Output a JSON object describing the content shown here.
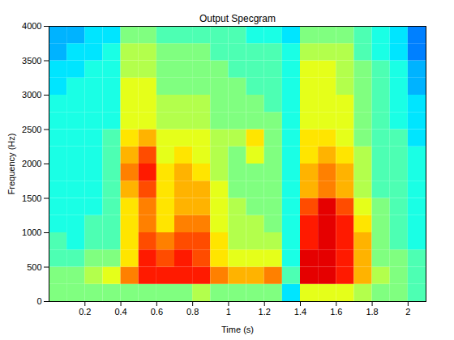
{
  "chart_data": {
    "type": "heatmap",
    "title": "Output Specgram",
    "x_label": "Time (s)",
    "y_label": "Frequency (Hz)",
    "color": "jet",
    "xlim": [
      0,
      2.1
    ],
    "ylim": [
      0,
      4000
    ],
    "xticks": [
      0.2,
      0.4,
      0.6,
      0.8,
      1,
      1.2,
      1.4,
      1.6,
      1.8,
      2
    ],
    "yticks": [
      0,
      500,
      1000,
      1500,
      2000,
      2500,
      3000,
      3500,
      4000
    ],
    "zlim": [
      0,
      10
    ],
    "x_edges": [
      0,
      0.1,
      0.2,
      0.3,
      0.4,
      0.5,
      0.6,
      0.7,
      0.8,
      0.9,
      1,
      1.1,
      1.2,
      1.3,
      1.4,
      1.5,
      1.6,
      1.7,
      1.8,
      1.9,
      2,
      2.1
    ],
    "y_edges": [
      0,
      250,
      500,
      750,
      1000,
      1250,
      1500,
      1750,
      2000,
      2250,
      2500,
      2750,
      3000,
      3250,
      3500,
      3750,
      4000
    ],
    "cells": [
      [
        5,
        5,
        4.5,
        4.5,
        4,
        4,
        4,
        4,
        4,
        4,
        4,
        4,
        3.5,
        3.5,
        3,
        3
      ],
      [
        5,
        5,
        4.5,
        4,
        4,
        4,
        4,
        4,
        4,
        4,
        4,
        4,
        4,
        3.5,
        3.5,
        3
      ],
      [
        5,
        5.5,
        5,
        4.5,
        4.5,
        4,
        4,
        4,
        4,
        4,
        4,
        4,
        4,
        4,
        3.5,
        3.5
      ],
      [
        5,
        6,
        5,
        4.5,
        4.5,
        4.5,
        4.5,
        4.5,
        4.5,
        4.5,
        4,
        4,
        4,
        4,
        4,
        3.5
      ],
      [
        5,
        7.5,
        6.5,
        6.5,
        6.5,
        6.5,
        7,
        7.5,
        7,
        6.5,
        6,
        6,
        6,
        5.5,
        5.5,
        5
      ],
      [
        5,
        8.5,
        8.5,
        8,
        7.5,
        7.5,
        8,
        8.5,
        8,
        7,
        6,
        6,
        6,
        5.5,
        5.5,
        5
      ],
      [
        5,
        8.5,
        8,
        7.5,
        6.5,
        6.5,
        6.5,
        6.5,
        6,
        6,
        5.5,
        5.5,
        5,
        5,
        5,
        4.5
      ],
      [
        5,
        8.5,
        8.5,
        8,
        7.5,
        7,
        7,
        7,
        6.5,
        6,
        5.5,
        5.5,
        5,
        5,
        5,
        4.5
      ],
      [
        5.5,
        8.5,
        8,
        8,
        7.5,
        7,
        7,
        6.5,
        6,
        6,
        5.5,
        5.5,
        5,
        5,
        5,
        4.5
      ],
      [
        5,
        7.5,
        6.5,
        6.5,
        6,
        6,
        6,
        5.5,
        5.5,
        5.5,
        5,
        5,
        5,
        5,
        4.5,
        4.5
      ],
      [
        5,
        7,
        6,
        5.5,
        5.5,
        5.5,
        5,
        5,
        5,
        5.5,
        5,
        5,
        5,
        4.5,
        4.5,
        4.5
      ],
      [
        5,
        7,
        6,
        5.5,
        5.5,
        5,
        5,
        5,
        6,
        6.5,
        5,
        5,
        4.5,
        4.5,
        4.5,
        4
      ],
      [
        5,
        7.5,
        6,
        5.5,
        5,
        5,
        5,
        5,
        5,
        5,
        5,
        4.5,
        4.5,
        4.5,
        4.5,
        4
      ],
      [
        3.5,
        4.5,
        4,
        4,
        4,
        4,
        4,
        4,
        4,
        4,
        4,
        4,
        4,
        4,
        4,
        3.5
      ],
      [
        6,
        9,
        9,
        8.5,
        8.5,
        8,
        7,
        7,
        6.5,
        6.5,
        6,
        6,
        6,
        6,
        5.5,
        5
      ],
      [
        6,
        9,
        9,
        9,
        9,
        9,
        7.5,
        7.5,
        7,
        6.5,
        6,
        6,
        6,
        6,
        5.5,
        5
      ],
      [
        6,
        8.5,
        8.5,
        8.5,
        8.5,
        8,
        7,
        7,
        6.5,
        6,
        6,
        6,
        5.5,
        5.5,
        5.5,
        5
      ],
      [
        5.5,
        7,
        7,
        7,
        6.5,
        6,
        5.5,
        5.5,
        5.5,
        5,
        5,
        5,
        5,
        5,
        4.5,
        4.5
      ],
      [
        5,
        5.5,
        5,
        5,
        5,
        5,
        4.5,
        4.5,
        4.5,
        4.5,
        4.5,
        4.5,
        4.5,
        4.5,
        4,
        4
      ],
      [
        5,
        5,
        5,
        4.5,
        4.5,
        4.5,
        4.5,
        4.5,
        4.5,
        4.5,
        4,
        4,
        4,
        4,
        3.5,
        3.5
      ],
      [
        4.5,
        4.5,
        4.5,
        4,
        4,
        4,
        4,
        4,
        4,
        3.5,
        3.5,
        3.5,
        3,
        3,
        2.5,
        2.5
      ]
    ]
  }
}
